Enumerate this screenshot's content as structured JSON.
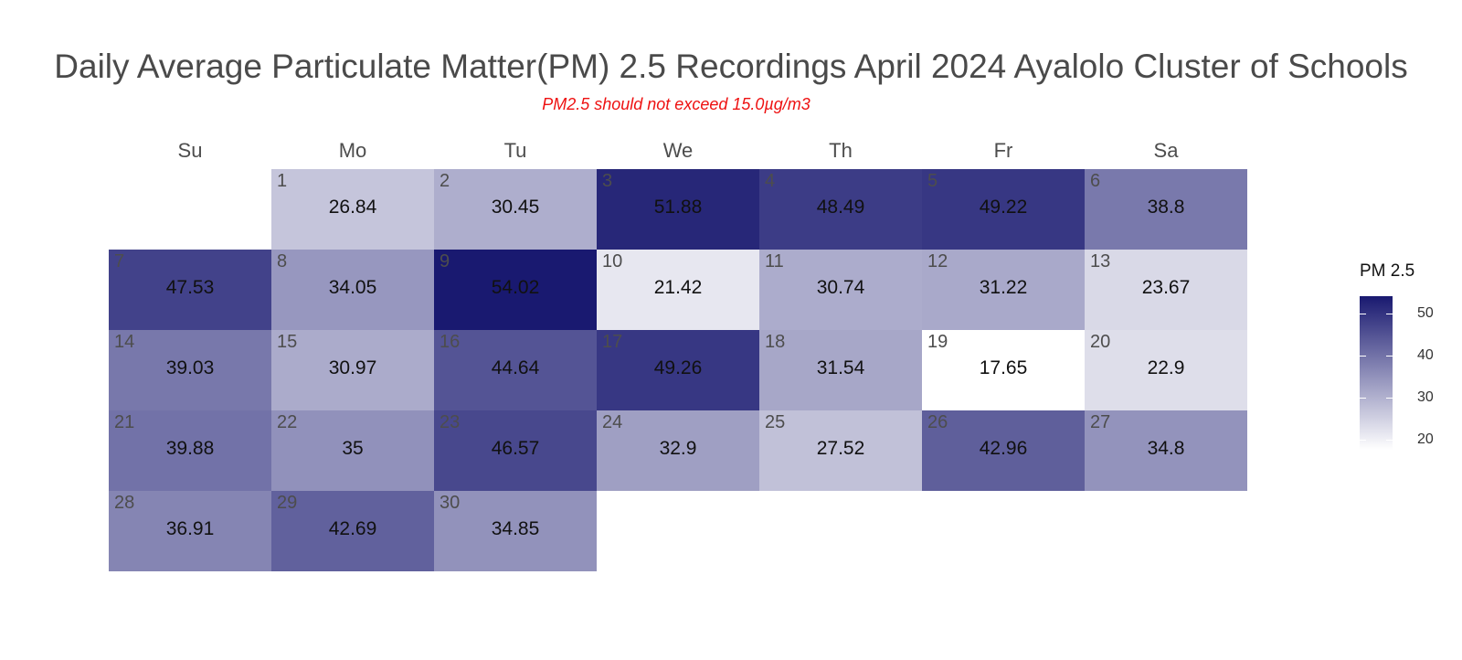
{
  "chart_data": {
    "type": "heatmap",
    "title": "Daily Average Particulate Matter(PM) 2.5 Recordings April 2024 Ayalolo Cluster of Schools",
    "subtitle": "PM2.5 should not exceed 15.0µg/m3",
    "weekdays": [
      "Su",
      "Mo",
      "Tu",
      "We",
      "Th",
      "Fr",
      "Sa"
    ],
    "month": "April 2024",
    "first_weekday_index": 1,
    "days": [
      1,
      2,
      3,
      4,
      5,
      6,
      7,
      8,
      9,
      10,
      11,
      12,
      13,
      14,
      15,
      16,
      17,
      18,
      19,
      20,
      21,
      22,
      23,
      24,
      25,
      26,
      27,
      28,
      29,
      30
    ],
    "values": [
      26.84,
      30.45,
      51.88,
      48.49,
      49.22,
      38.8,
      47.53,
      34.05,
      54.02,
      21.42,
      30.74,
      31.22,
      23.67,
      39.03,
      30.97,
      44.64,
      49.26,
      31.54,
      17.65,
      22.9,
      39.88,
      35,
      46.57,
      32.9,
      27.52,
      42.96,
      34.8,
      36.91,
      42.69,
      34.85
    ],
    "value_labels": [
      "26.84",
      "30.45",
      "51.88",
      "48.49",
      "49.22",
      "38.8",
      "47.53",
      "34.05",
      "54.02",
      "21.42",
      "30.74",
      "31.22",
      "23.67",
      "39.03",
      "30.97",
      "44.64",
      "49.26",
      "31.54",
      "17.65",
      "22.9",
      "39.88",
      "35",
      "46.57",
      "32.9",
      "27.52",
      "42.96",
      "34.8",
      "36.91",
      "42.69",
      "34.85"
    ],
    "legend": {
      "title": "PM 2.5",
      "placement": "right",
      "range": [
        17.65,
        54.02
      ],
      "ticks": [
        20,
        30,
        40,
        50
      ],
      "tick_labels": [
        "20",
        "30",
        "40",
        "50"
      ],
      "color_low": "#ffffff",
      "color_high": "#191970"
    }
  }
}
